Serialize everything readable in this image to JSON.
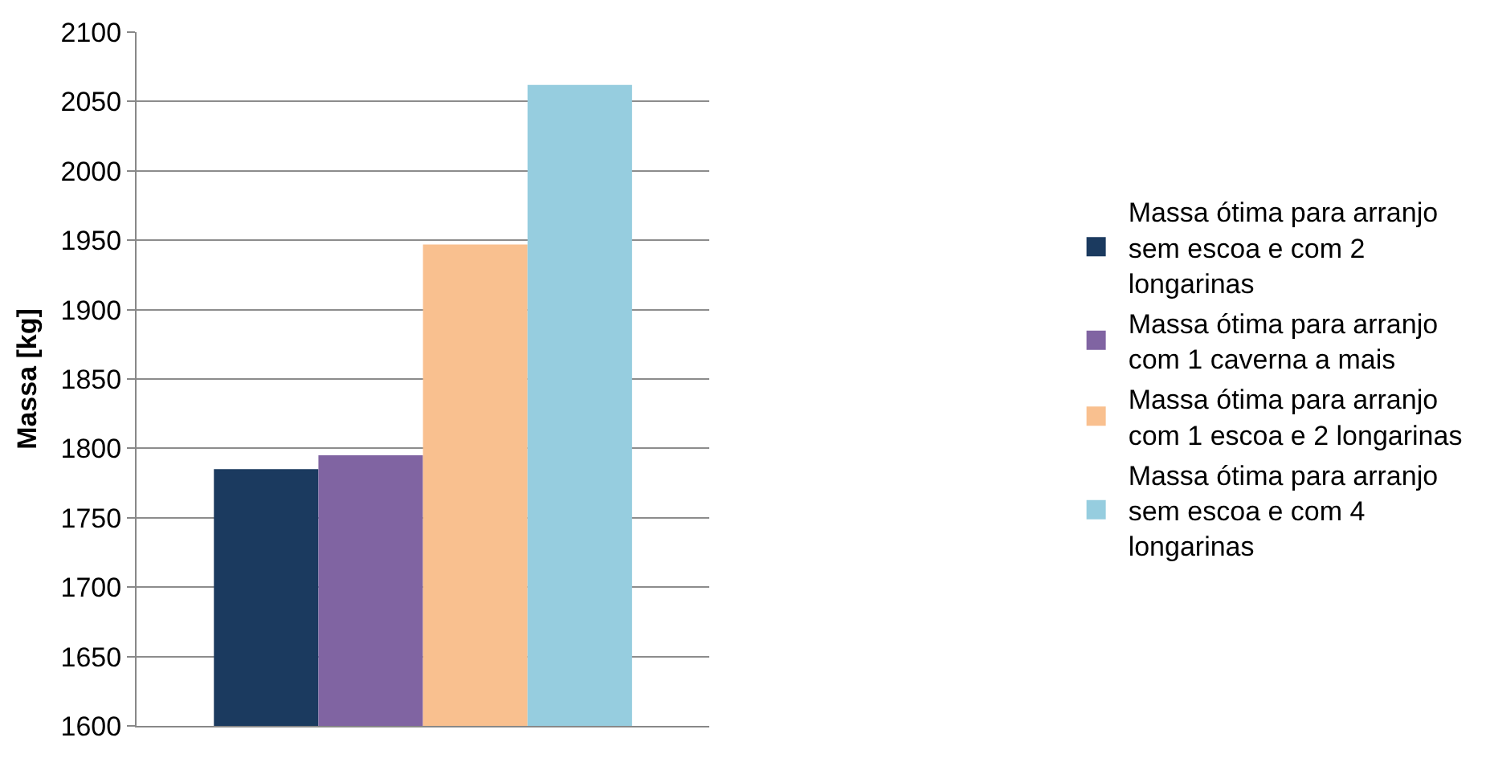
{
  "chart_data": {
    "type": "bar",
    "ylabel": "Massa [kg]",
    "categories": [
      null
    ],
    "series": [
      {
        "name": "Massa ótima para arranjo sem escoa e com 2 longarinas",
        "color": "#1b3a5f",
        "values": [
          1785
        ]
      },
      {
        "name": "Massa ótima para arranjo com 1 caverna a mais",
        "color": "#8064a2",
        "values": [
          1795
        ]
      },
      {
        "name": "Massa ótima para arranjo com 1 escoa e 2 longarinas",
        "color": "#f9c08f",
        "values": [
          1947
        ]
      },
      {
        "name": "Massa ótima para arranjo sem escoa e com 4 longarinas",
        "color": "#96cddf",
        "values": [
          2062
        ]
      }
    ],
    "ylim": [
      1600,
      2100
    ],
    "yticks": [
      1600,
      1650,
      1700,
      1750,
      1800,
      1850,
      1900,
      1950,
      2000,
      2050,
      2100
    ],
    "grid": "y",
    "legend": "right"
  }
}
